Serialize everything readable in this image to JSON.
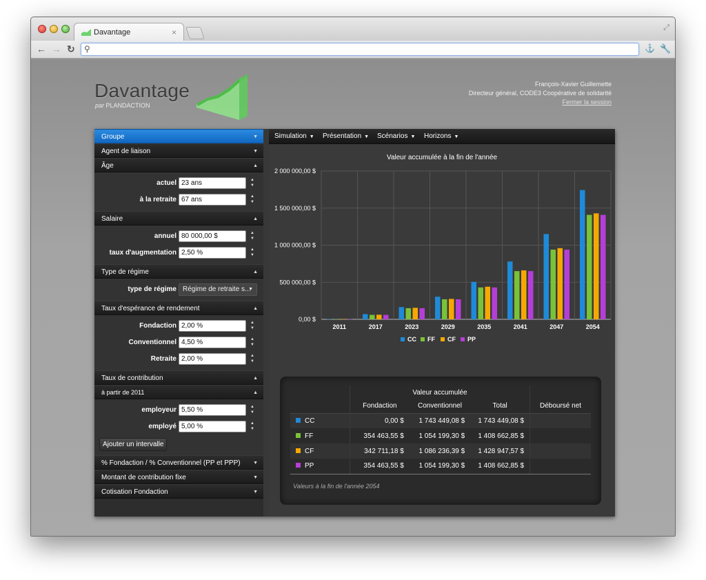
{
  "browser": {
    "tab_title": "Davantage",
    "tab_close": "×",
    "address_value": "",
    "resize_glyph": "⤢"
  },
  "header": {
    "logo": "Davantage",
    "logo_sub_prefix": "par",
    "logo_sub_brand": "PLANDACTION",
    "user_name": "François-Xavier Guillemette",
    "user_role": "Directeur général, CODE3 Coopérative de solidarité",
    "logout": "Fermer la session"
  },
  "sidebar": {
    "groupe": "Groupe",
    "agent": "Agent de liaison",
    "age": "Âge",
    "age_actuel_label": "actuel",
    "age_actuel_value": "23 ans",
    "age_retraite_label": "à la retraite",
    "age_retraite_value": "67 ans",
    "salaire": "Salaire",
    "salaire_annuel_label": "annuel",
    "salaire_annuel_value": "80 000,00 $",
    "salaire_taux_label": "taux d'augmentation",
    "salaire_taux_value": "2,50 %",
    "regime": "Type de régime",
    "regime_label": "type de régime",
    "regime_value": "Régime de retraite s...",
    "rendement": "Taux d'espérance de rendement",
    "fondaction_label": "Fondaction",
    "fondaction_value": "2,00 %",
    "conventionnel_label": "Conventionnel",
    "conventionnel_value": "4,50 %",
    "retraite_label": "Retraite",
    "retraite_value": "2,00 %",
    "contribution": "Taux de contribution",
    "apartir": "à partir de 2011",
    "employeur_label": "employeur",
    "employeur_value": "5,50 %",
    "employe_label": "employé",
    "employe_value": "5,00 %",
    "add_interval": "Ajouter un intervalle",
    "pct_fondaction": "% Fondaction / % Conventionnel (PP et PPP)",
    "montant": "Montant de contribution fixe",
    "cotisation": "Cotisation Fondaction"
  },
  "menu": {
    "simulation": "Simulation",
    "presentation": "Présentation",
    "scenarios": "Scénarios",
    "horizons": "Horizons"
  },
  "chart_data": {
    "type": "bar",
    "title": "Valeur accumulée à la fin de l'année",
    "categories": [
      "2011",
      "2017",
      "2023",
      "2029",
      "2035",
      "2041",
      "2047",
      "2054"
    ],
    "ylim": [
      0,
      2000000
    ],
    "yticks": [
      0,
      500000,
      1000000,
      1500000,
      2000000
    ],
    "ytick_labels": [
      "0,00 $",
      "500 000,00 $",
      "1 000 000,00 $",
      "1 500 000,00 $",
      "2 000 000,00 $"
    ],
    "grid": true,
    "legend": "bottom",
    "series": [
      {
        "name": "CC",
        "color": "#1f8ad8",
        "values": [
          5000,
          70000,
          165000,
          305000,
          505000,
          780000,
          1150000,
          1743449
        ]
      },
      {
        "name": "FF",
        "color": "#7ac238",
        "values": [
          3000,
          60000,
          150000,
          270000,
          430000,
          650000,
          940000,
          1408663
        ]
      },
      {
        "name": "CF",
        "color": "#f7a800",
        "values": [
          3000,
          62000,
          155000,
          275000,
          440000,
          660000,
          960000,
          1428948
        ]
      },
      {
        "name": "PP",
        "color": "#b63ed8",
        "values": [
          3000,
          60000,
          150000,
          270000,
          430000,
          650000,
          940000,
          1408663
        ]
      }
    ]
  },
  "table": {
    "group_header": "Valeur accumulée",
    "columns": [
      "Fondaction",
      "Conventionnel",
      "Total",
      "Déboursé net"
    ],
    "rows": [
      {
        "name": "CC",
        "color": "#1f8ad8",
        "fondaction": "0,00 $",
        "conventionnel": "1 743 449,08 $",
        "total": "1 743 449,08 $",
        "debourse": ""
      },
      {
        "name": "FF",
        "color": "#7ac238",
        "fondaction": "354 463,55 $",
        "conventionnel": "1 054 199,30 $",
        "total": "1 408 662,85 $",
        "debourse": ""
      },
      {
        "name": "CF",
        "color": "#f7a800",
        "fondaction": "342 711,18 $",
        "conventionnel": "1 086 236,39 $",
        "total": "1 428 947,57 $",
        "debourse": ""
      },
      {
        "name": "PP",
        "color": "#b63ed8",
        "fondaction": "354 463,55 $",
        "conventionnel": "1 054 199,30 $",
        "total": "1 408 662,85 $",
        "debourse": ""
      }
    ],
    "note": "Valeurs à la fin de l'année 2054"
  }
}
